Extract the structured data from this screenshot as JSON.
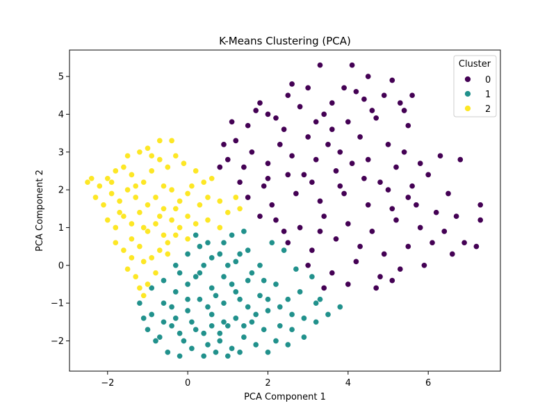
{
  "chart_data": {
    "type": "scatter",
    "title": "K-Means Clustering (PCA)",
    "xlabel": "PCA Component 1",
    "ylabel": "PCA Component 2",
    "xlim": [
      -2.95,
      7.8
    ],
    "ylim": [
      -2.8,
      5.7
    ],
    "xticks": [
      -2,
      0,
      2,
      4,
      6
    ],
    "yticks": [
      -2,
      -1,
      0,
      1,
      2,
      3,
      4,
      5
    ],
    "xtick_labels": [
      "−2",
      "0",
      "2",
      "4",
      "6"
    ],
    "ytick_labels": [
      "−2",
      "−1",
      "0",
      "1",
      "2",
      "3",
      "4",
      "5"
    ],
    "grid": false,
    "legend": {
      "title": "Cluster",
      "position": "top-right"
    },
    "series": [
      {
        "name": "0",
        "color": "#440154",
        "points": [
          [
            2.0,
            4.0
          ],
          [
            2.5,
            4.5
          ],
          [
            3.0,
            4.7
          ],
          [
            3.3,
            5.3
          ],
          [
            4.1,
            5.3
          ],
          [
            4.5,
            5.0
          ],
          [
            5.1,
            4.9
          ],
          [
            5.6,
            4.5
          ],
          [
            3.6,
            4.3
          ],
          [
            4.2,
            4.6
          ],
          [
            1.8,
            4.3
          ],
          [
            2.2,
            3.9
          ],
          [
            2.8,
            4.2
          ],
          [
            3.4,
            4.0
          ],
          [
            4.0,
            3.8
          ],
          [
            4.6,
            4.1
          ],
          [
            5.3,
            4.3
          ],
          [
            1.5,
            3.7
          ],
          [
            1.2,
            3.3
          ],
          [
            0.9,
            3.2
          ],
          [
            1.6,
            3.0
          ],
          [
            2.3,
            3.2
          ],
          [
            3.0,
            3.4
          ],
          [
            3.6,
            3.6
          ],
          [
            4.3,
            3.4
          ],
          [
            5.0,
            3.2
          ],
          [
            5.5,
            3.7
          ],
          [
            1.0,
            2.8
          ],
          [
            1.4,
            2.6
          ],
          [
            2.0,
            2.7
          ],
          [
            2.6,
            2.9
          ],
          [
            3.2,
            2.8
          ],
          [
            3.8,
            3.0
          ],
          [
            4.5,
            2.8
          ],
          [
            5.2,
            2.6
          ],
          [
            5.8,
            2.7
          ],
          [
            6.3,
            2.9
          ],
          [
            6.8,
            2.8
          ],
          [
            1.3,
            2.2
          ],
          [
            1.9,
            2.1
          ],
          [
            2.5,
            2.4
          ],
          [
            3.1,
            2.2
          ],
          [
            3.7,
            2.5
          ],
          [
            4.4,
            2.3
          ],
          [
            5.0,
            2.0
          ],
          [
            5.6,
            2.1
          ],
          [
            1.5,
            1.8
          ],
          [
            2.1,
            1.6
          ],
          [
            2.7,
            1.9
          ],
          [
            3.3,
            1.7
          ],
          [
            3.9,
            1.9
          ],
          [
            4.5,
            1.6
          ],
          [
            5.1,
            1.5
          ],
          [
            5.7,
            1.6
          ],
          [
            6.2,
            1.4
          ],
          [
            6.7,
            1.3
          ],
          [
            7.3,
            1.6
          ],
          [
            7.3,
            1.2
          ],
          [
            2.2,
            1.2
          ],
          [
            2.8,
            1.0
          ],
          [
            3.4,
            1.3
          ],
          [
            4.0,
            1.1
          ],
          [
            4.6,
            0.9
          ],
          [
            5.2,
            1.2
          ],
          [
            5.8,
            1.0
          ],
          [
            6.4,
            0.9
          ],
          [
            6.9,
            0.6
          ],
          [
            7.2,
            0.5
          ],
          [
            2.5,
            0.6
          ],
          [
            3.1,
            0.4
          ],
          [
            3.7,
            0.7
          ],
          [
            4.3,
            0.5
          ],
          [
            4.9,
            0.3
          ],
          [
            5.5,
            0.5
          ],
          [
            6.1,
            0.6
          ],
          [
            6.6,
            0.3
          ],
          [
            3.0,
            0.0
          ],
          [
            3.6,
            -0.2
          ],
          [
            4.2,
            0.1
          ],
          [
            4.8,
            -0.3
          ],
          [
            5.3,
            -0.1
          ],
          [
            5.9,
            0.0
          ],
          [
            3.4,
            -0.6
          ],
          [
            4.0,
            -0.5
          ],
          [
            4.7,
            -0.6
          ],
          [
            5.1,
            -0.4
          ],
          [
            2.9,
            2.4
          ],
          [
            3.5,
            3.2
          ],
          [
            2.4,
            3.6
          ],
          [
            4.7,
            3.9
          ],
          [
            1.1,
            3.8
          ],
          [
            0.8,
            2.6
          ],
          [
            1.7,
            4.1
          ],
          [
            3.9,
            4.7
          ],
          [
            4.9,
            4.5
          ],
          [
            2.6,
            4.8
          ],
          [
            3.2,
            3.8
          ],
          [
            4.4,
            4.4
          ],
          [
            5.4,
            4.1
          ],
          [
            2.0,
            2.3
          ],
          [
            6.0,
            2.4
          ],
          [
            6.5,
            1.9
          ],
          [
            5.4,
            3.0
          ],
          [
            1.8,
            1.3
          ],
          [
            2.4,
            0.9
          ],
          [
            3.8,
            2.1
          ],
          [
            4.1,
            2.7
          ],
          [
            4.8,
            2.2
          ],
          [
            5.5,
            1.8
          ],
          [
            3.3,
            0.9
          ]
        ]
      },
      {
        "name": "1",
        "color": "#21918c",
        "points": [
          [
            -1.2,
            -1.0
          ],
          [
            -0.9,
            -1.3
          ],
          [
            -0.6,
            -1.0
          ],
          [
            -0.3,
            -1.4
          ],
          [
            0.0,
            -1.2
          ],
          [
            0.3,
            -0.9
          ],
          [
            0.6,
            -1.3
          ],
          [
            0.9,
            -1.0
          ],
          [
            1.2,
            -1.4
          ],
          [
            1.5,
            -1.1
          ],
          [
            -1.0,
            -1.7
          ],
          [
            -0.7,
            -1.9
          ],
          [
            -0.4,
            -1.6
          ],
          [
            -0.1,
            -2.0
          ],
          [
            0.2,
            -1.7
          ],
          [
            0.5,
            -2.1
          ],
          [
            0.8,
            -1.8
          ],
          [
            1.1,
            -2.2
          ],
          [
            1.4,
            -1.9
          ],
          [
            1.7,
            -2.1
          ],
          [
            -0.5,
            -2.3
          ],
          [
            -0.2,
            -2.4
          ],
          [
            0.1,
            -2.2
          ],
          [
            0.4,
            -2.4
          ],
          [
            0.7,
            -2.3
          ],
          [
            1.0,
            -2.4
          ],
          [
            1.3,
            -2.3
          ],
          [
            -0.9,
            -0.6
          ],
          [
            -0.6,
            -0.4
          ],
          [
            -0.3,
            -0.7
          ],
          [
            0.0,
            -0.5
          ],
          [
            0.3,
            -0.2
          ],
          [
            0.6,
            -0.6
          ],
          [
            0.9,
            -0.3
          ],
          [
            1.2,
            -0.7
          ],
          [
            1.5,
            -0.4
          ],
          [
            1.8,
            -0.8
          ],
          [
            -0.3,
            0.0
          ],
          [
            0.0,
            0.3
          ],
          [
            0.3,
            0.5
          ],
          [
            0.6,
            0.2
          ],
          [
            0.9,
            0.6
          ],
          [
            1.2,
            0.1
          ],
          [
            1.5,
            0.4
          ],
          [
            1.8,
            0.0
          ],
          [
            0.2,
            0.8
          ],
          [
            0.5,
            0.6
          ],
          [
            0.8,
            0.3
          ],
          [
            1.1,
            0.8
          ],
          [
            1.4,
            0.9
          ],
          [
            2.0,
            -1.2
          ],
          [
            2.3,
            -1.6
          ],
          [
            2.6,
            -1.3
          ],
          [
            2.9,
            -1.9
          ],
          [
            3.2,
            -1.5
          ],
          [
            3.5,
            -1.3
          ],
          [
            3.8,
            -1.1
          ],
          [
            2.2,
            -0.5
          ],
          [
            2.5,
            -0.9
          ],
          [
            2.8,
            -0.7
          ],
          [
            3.1,
            -0.3
          ],
          [
            3.3,
            -0.9
          ],
          [
            2.4,
            0.4
          ],
          [
            2.1,
            0.6
          ],
          [
            2.7,
            -0.1
          ],
          [
            2.0,
            -2.3
          ],
          [
            2.5,
            -2.1
          ],
          [
            1.9,
            -1.7
          ],
          [
            2.2,
            -2.0
          ],
          [
            1.6,
            -1.5
          ],
          [
            -0.8,
            -2.0
          ],
          [
            -1.1,
            -1.4
          ],
          [
            -0.4,
            -1.1
          ],
          [
            0.1,
            -1.5
          ],
          [
            0.4,
            -1.8
          ],
          [
            0.7,
            -0.8
          ],
          [
            1.0,
            -1.6
          ],
          [
            1.3,
            -0.9
          ],
          [
            1.6,
            -0.2
          ],
          [
            1.9,
            -0.4
          ],
          [
            -0.2,
            -1.8
          ],
          [
            0.2,
            -0.3
          ],
          [
            0.5,
            -1.1
          ],
          [
            0.8,
            -2.0
          ],
          [
            1.1,
            -0.5
          ],
          [
            1.4,
            -1.6
          ],
          [
            1.7,
            -1.3
          ],
          [
            2.0,
            -0.9
          ],
          [
            2.3,
            -1.1
          ],
          [
            2.6,
            -1.7
          ],
          [
            2.9,
            -1.4
          ],
          [
            3.2,
            -1.0
          ],
          [
            0.0,
            -0.9
          ],
          [
            0.4,
            0.0
          ],
          [
            0.9,
            -1.5
          ],
          [
            1.3,
            0.3
          ],
          [
            1.0,
            0.0
          ],
          [
            0.6,
            -1.6
          ],
          [
            -0.6,
            -1.5
          ],
          [
            -0.2,
            -0.2
          ]
        ]
      },
      {
        "name": "2",
        "color": "#fde725",
        "points": [
          [
            -2.4,
            2.3
          ],
          [
            -2.2,
            2.1
          ],
          [
            -2.0,
            2.3
          ],
          [
            -1.8,
            2.5
          ],
          [
            -1.6,
            2.6
          ],
          [
            -1.4,
            2.4
          ],
          [
            -1.2,
            3.0
          ],
          [
            -1.0,
            3.1
          ],
          [
            -0.7,
            3.3
          ],
          [
            -0.4,
            3.3
          ],
          [
            -2.3,
            1.8
          ],
          [
            -2.1,
            1.6
          ],
          [
            -1.9,
            1.9
          ],
          [
            -1.7,
            1.7
          ],
          [
            -1.5,
            2.0
          ],
          [
            -1.3,
            1.8
          ],
          [
            -1.1,
            2.2
          ],
          [
            -0.9,
            2.5
          ],
          [
            -0.7,
            2.8
          ],
          [
            -0.5,
            2.6
          ],
          [
            -0.3,
            2.9
          ],
          [
            -0.1,
            2.7
          ],
          [
            0.2,
            2.5
          ],
          [
            0.4,
            2.2
          ],
          [
            0.6,
            2.3
          ],
          [
            -2.0,
            1.2
          ],
          [
            -1.8,
            1.0
          ],
          [
            -1.6,
            1.3
          ],
          [
            -1.4,
            1.1
          ],
          [
            -1.2,
            1.4
          ],
          [
            -1.0,
            1.6
          ],
          [
            -0.8,
            1.8
          ],
          [
            -0.6,
            1.5
          ],
          [
            -0.4,
            2.0
          ],
          [
            -0.2,
            1.7
          ],
          [
            0.0,
            1.9
          ],
          [
            0.3,
            1.6
          ],
          [
            0.5,
            1.8
          ],
          [
            0.8,
            1.7
          ],
          [
            1.0,
            1.4
          ],
          [
            1.3,
            1.5
          ],
          [
            -1.8,
            0.6
          ],
          [
            -1.6,
            0.4
          ],
          [
            -1.4,
            0.7
          ],
          [
            -1.2,
            0.5
          ],
          [
            -1.0,
            0.9
          ],
          [
            -0.8,
            1.1
          ],
          [
            -0.6,
            0.8
          ],
          [
            -0.4,
            1.2
          ],
          [
            -0.2,
            1.0
          ],
          [
            0.0,
            1.3
          ],
          [
            0.2,
            1.1
          ],
          [
            0.5,
            1.2
          ],
          [
            0.8,
            1.0
          ],
          [
            1.2,
            1.8
          ],
          [
            -1.5,
            -0.1
          ],
          [
            -1.3,
            -0.3
          ],
          [
            -1.1,
            0.1
          ],
          [
            -0.9,
            0.2
          ],
          [
            -0.7,
            0.4
          ],
          [
            -0.5,
            0.6
          ],
          [
            -0.3,
            0.8
          ],
          [
            0.0,
            0.7
          ],
          [
            -1.2,
            -0.6
          ],
          [
            -1.0,
            -0.5
          ],
          [
            -0.8,
            -0.2
          ],
          [
            -1.1,
            -0.8
          ],
          [
            -2.5,
            2.2
          ],
          [
            -0.6,
            2.1
          ],
          [
            -0.9,
            2.9
          ],
          [
            -1.5,
            2.9
          ],
          [
            -1.9,
            2.2
          ],
          [
            -1.7,
            1.4
          ],
          [
            -1.3,
            2.1
          ],
          [
            -1.1,
            1.0
          ],
          [
            -0.7,
            1.3
          ],
          [
            -0.3,
            1.5
          ],
          [
            0.1,
            2.1
          ],
          [
            -0.5,
            0.3
          ],
          [
            -1.4,
            0.2
          ]
        ]
      }
    ]
  }
}
